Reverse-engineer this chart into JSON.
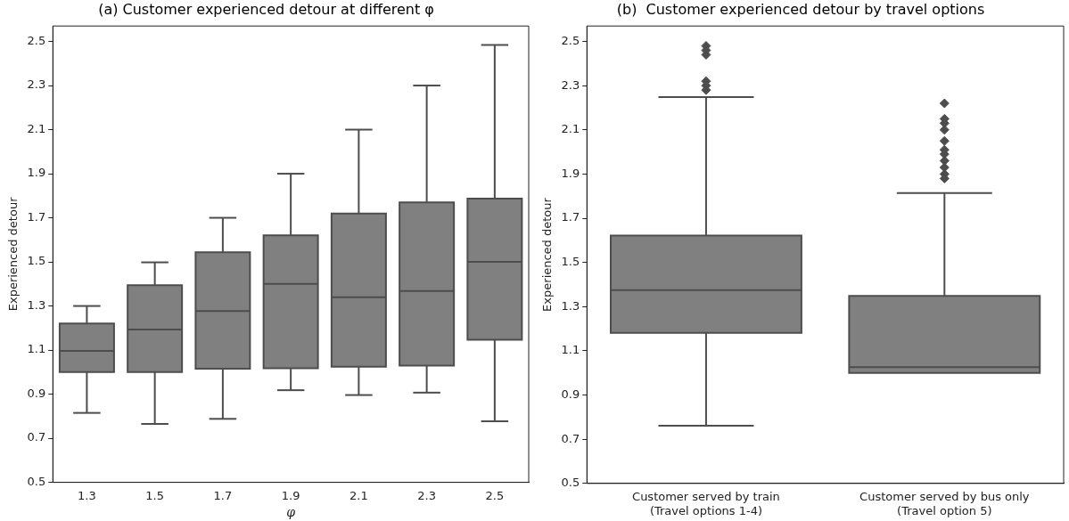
{
  "chart_data": [
    {
      "type": "box",
      "title": "(a) Customer experienced detour at different φ",
      "xlabel": "φ",
      "ylabel": "Experienced detour",
      "color": "#808080",
      "grid": false,
      "ylim": [
        0.5,
        2.57
      ],
      "yticks": [
        0.5,
        0.7,
        0.9,
        1.1,
        1.3,
        1.5,
        1.7,
        1.9,
        2.1,
        2.3,
        2.5
      ],
      "categories": [
        "1.3",
        "1.5",
        "1.7",
        "1.9",
        "2.1",
        "2.3",
        "2.5"
      ],
      "boxes": [
        {
          "low": 0.815,
          "q1": 1.0,
          "median": 1.096,
          "q3": 1.221,
          "high": 1.3
        },
        {
          "low": 0.765,
          "q1": 1.0,
          "median": 1.193,
          "q3": 1.394,
          "high": 1.498
        },
        {
          "low": 0.788,
          "q1": 1.015,
          "median": 1.277,
          "q3": 1.544,
          "high": 1.7
        },
        {
          "low": 0.918,
          "q1": 1.018,
          "median": 1.4,
          "q3": 1.62,
          "high": 1.9
        },
        {
          "low": 0.896,
          "q1": 1.025,
          "median": 1.34,
          "q3": 1.719,
          "high": 2.1
        },
        {
          "low": 0.907,
          "q1": 1.03,
          "median": 1.368,
          "q3": 1.77,
          "high": 2.3
        },
        {
          "low": 0.777,
          "q1": 1.147,
          "median": 1.5,
          "q3": 1.787,
          "high": 2.484
        }
      ]
    },
    {
      "type": "box",
      "title": "(b)  Customer experienced detour by travel options",
      "ylabel": "Experienced detour",
      "color": "#808080",
      "grid": false,
      "ylim": [
        0.5,
        2.57
      ],
      "yticks": [
        0.5,
        0.7,
        0.9,
        1.1,
        1.3,
        1.5,
        1.7,
        1.9,
        2.1,
        2.3,
        2.5
      ],
      "categories": [
        "Customer served by train\n(Travel options 1-4)",
        "Customer served by bus only\n(Travel option 5)"
      ],
      "boxes": [
        {
          "low": 0.761,
          "q1": 1.181,
          "median": 1.375,
          "q3": 1.622,
          "high": 2.248,
          "outliers": [
            2.28,
            2.3,
            2.32,
            2.44,
            2.46,
            2.48
          ]
        },
        {
          "low": 1.0,
          "q1": 1.0,
          "median": 1.026,
          "q3": 1.349,
          "high": 1.814,
          "outliers": [
            1.88,
            1.9,
            1.93,
            1.96,
            1.99,
            2.01,
            2.05,
            2.1,
            2.13,
            2.15,
            2.22
          ]
        }
      ]
    }
  ]
}
